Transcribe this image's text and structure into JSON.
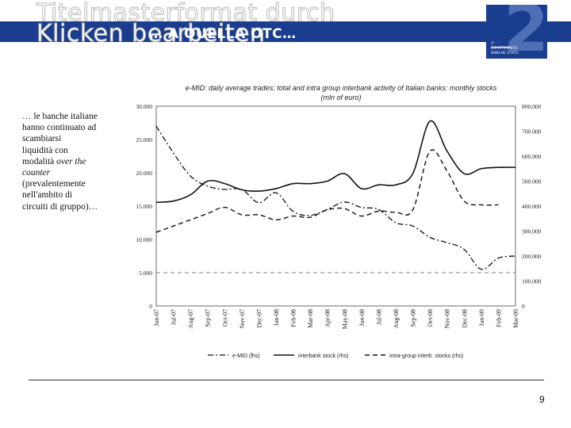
{
  "slide": {
    "placeholder_line1": "Titelmasterformat durch",
    "placeholder_line2": "Klicken bearbeiten",
    "title": "… A QUELLA OTC…",
    "page_number": "9"
  },
  "logo": {
    "number": "2",
    "caption": "1° DIPARTIMENTO BANCHE STATO"
  },
  "side_text": {
    "lines": [
      "… le banche italiane",
      "hanno continuato ad",
      "scambiarsi",
      "liquidità con",
      "modalità ",
      "counter",
      "(prevalentemente",
      "nell'ambito di",
      "circuiti di gruppo)…"
    ],
    "italic_part": "over the"
  },
  "colors": {
    "brand": "#1a3d8f",
    "brand_light": "#4e6fb5"
  },
  "chart_data": {
    "type": "line",
    "title_line1": "e-MID: daily average trades; total and intra group interbank activity of Italian banks: monthly stocks",
    "title_line2": "(mln of euro)",
    "categories": [
      "Jun-07",
      "Jul-07",
      "Aug-07",
      "Sep-07",
      "Oct-07",
      "Nov-07",
      "Dec-07",
      "Jan-08",
      "Feb-08",
      "Mar-08",
      "Apr-08",
      "May-08",
      "Jun-08",
      "Jul-08",
      "Aug-08",
      "Sep-08",
      "Oct-08",
      "Nov-08",
      "Dec-08",
      "Jan-09",
      "Feb-09",
      "Mar-09"
    ],
    "left_axis": {
      "min": 0,
      "max": 30000,
      "ticks": [
        "0",
        "5.000",
        "10.000",
        "15.000",
        "20.000",
        "25.000",
        "30.000"
      ],
      "tick_values": [
        0,
        5000,
        10000,
        15000,
        20000,
        25000,
        30000
      ]
    },
    "right_axis": {
      "min": 0,
      "max": 800000,
      "ticks": [
        "0",
        "100.000",
        "200.000",
        "300.000",
        "400.000",
        "500.000",
        "600.000",
        "700.000",
        "800.000"
      ],
      "tick_values": [
        0,
        100000,
        200000,
        300000,
        400000,
        500000,
        600000,
        700000,
        800000
      ]
    },
    "reference_line_lhs": 5000,
    "series": [
      {
        "name": "e-MID (lhs)",
        "axis": "left",
        "style": "dashdot",
        "values": [
          27000,
          23000,
          19500,
          18000,
          17500,
          17500,
          15500,
          17000,
          14200,
          13600,
          14500,
          15600,
          14800,
          14500,
          12500,
          12000,
          10300,
          9500,
          8500,
          5500,
          7200,
          7500
        ]
      },
      {
        "name": "interbank stock (rhs)",
        "axis": "right",
        "style": "solid",
        "values": [
          415000,
          420000,
          445000,
          500000,
          490000,
          465000,
          460000,
          470000,
          490000,
          490000,
          500000,
          530000,
          470000,
          485000,
          485000,
          530000,
          740000,
          620000,
          530000,
          550000,
          555000,
          555000
        ]
      },
      {
        "name": "intra-group interb. stocks (rhs)",
        "axis": "right",
        "style": "dashed",
        "values": [
          295000,
          320000,
          345000,
          370000,
          395000,
          365000,
          365000,
          345000,
          360000,
          355000,
          385000,
          390000,
          360000,
          380000,
          375000,
          385000,
          620000,
          540000,
          420000,
          405000,
          405000,
          null
        ]
      }
    ]
  }
}
